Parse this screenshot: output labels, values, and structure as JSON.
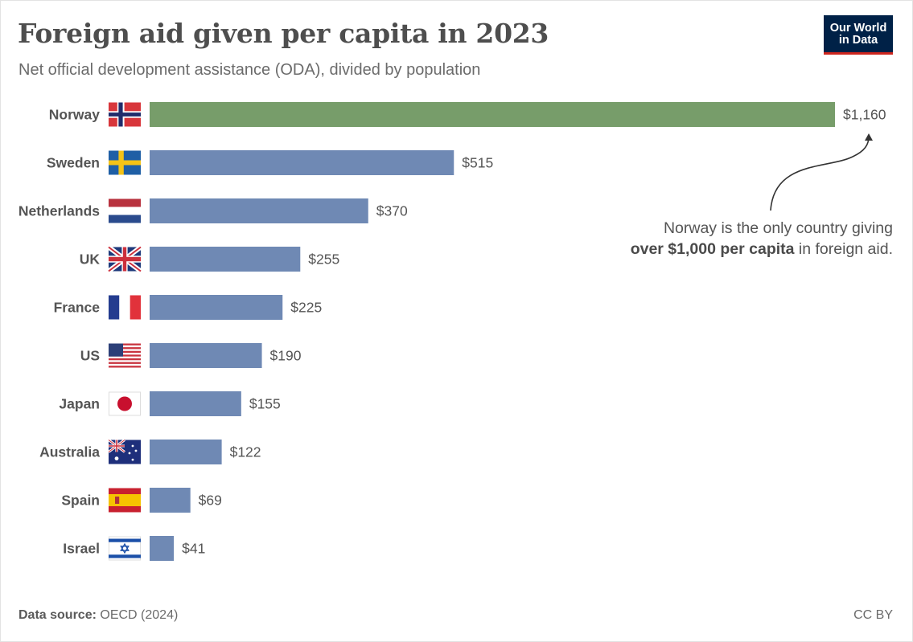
{
  "header": {
    "title": "Foreign aid given per capita in 2023",
    "subtitle": "Net official development assistance (ODA), divided by population"
  },
  "logo": {
    "line1": "Our World",
    "line2": "in Data"
  },
  "annotation": {
    "line1": "Norway is the only country giving",
    "bold": "over $1,000 per capita",
    "rest": " in foreign aid."
  },
  "footer": {
    "source_label": "Data source:",
    "source_value": "OECD (2024)",
    "license": "CC BY"
  },
  "colors": {
    "highlight": "#779d6a",
    "bar": "#6f89b4",
    "text": "#555555",
    "logo_bg": "#002147",
    "logo_accent": "#ce261e"
  },
  "chart_data": {
    "type": "bar",
    "orientation": "horizontal",
    "categories": [
      "Norway",
      "Sweden",
      "Netherlands",
      "UK",
      "France",
      "US",
      "Japan",
      "Australia",
      "Spain",
      "Israel"
    ],
    "values": [
      1160,
      515,
      370,
      255,
      225,
      190,
      155,
      122,
      69,
      41
    ],
    "value_labels": [
      "$1,160",
      "$515",
      "$370",
      "$255",
      "$225",
      "$190",
      "$155",
      "$122",
      "$69",
      "$41"
    ],
    "flags": [
      "norway-flag",
      "sweden-flag",
      "netherlands-flag",
      "uk-flag",
      "france-flag",
      "us-flag",
      "japan-flag",
      "australia-flag",
      "spain-flag",
      "israel-flag"
    ],
    "highlighted": "Norway",
    "unit": "$",
    "xlim": [
      0,
      1160
    ],
    "grid": false,
    "legend": "none"
  }
}
